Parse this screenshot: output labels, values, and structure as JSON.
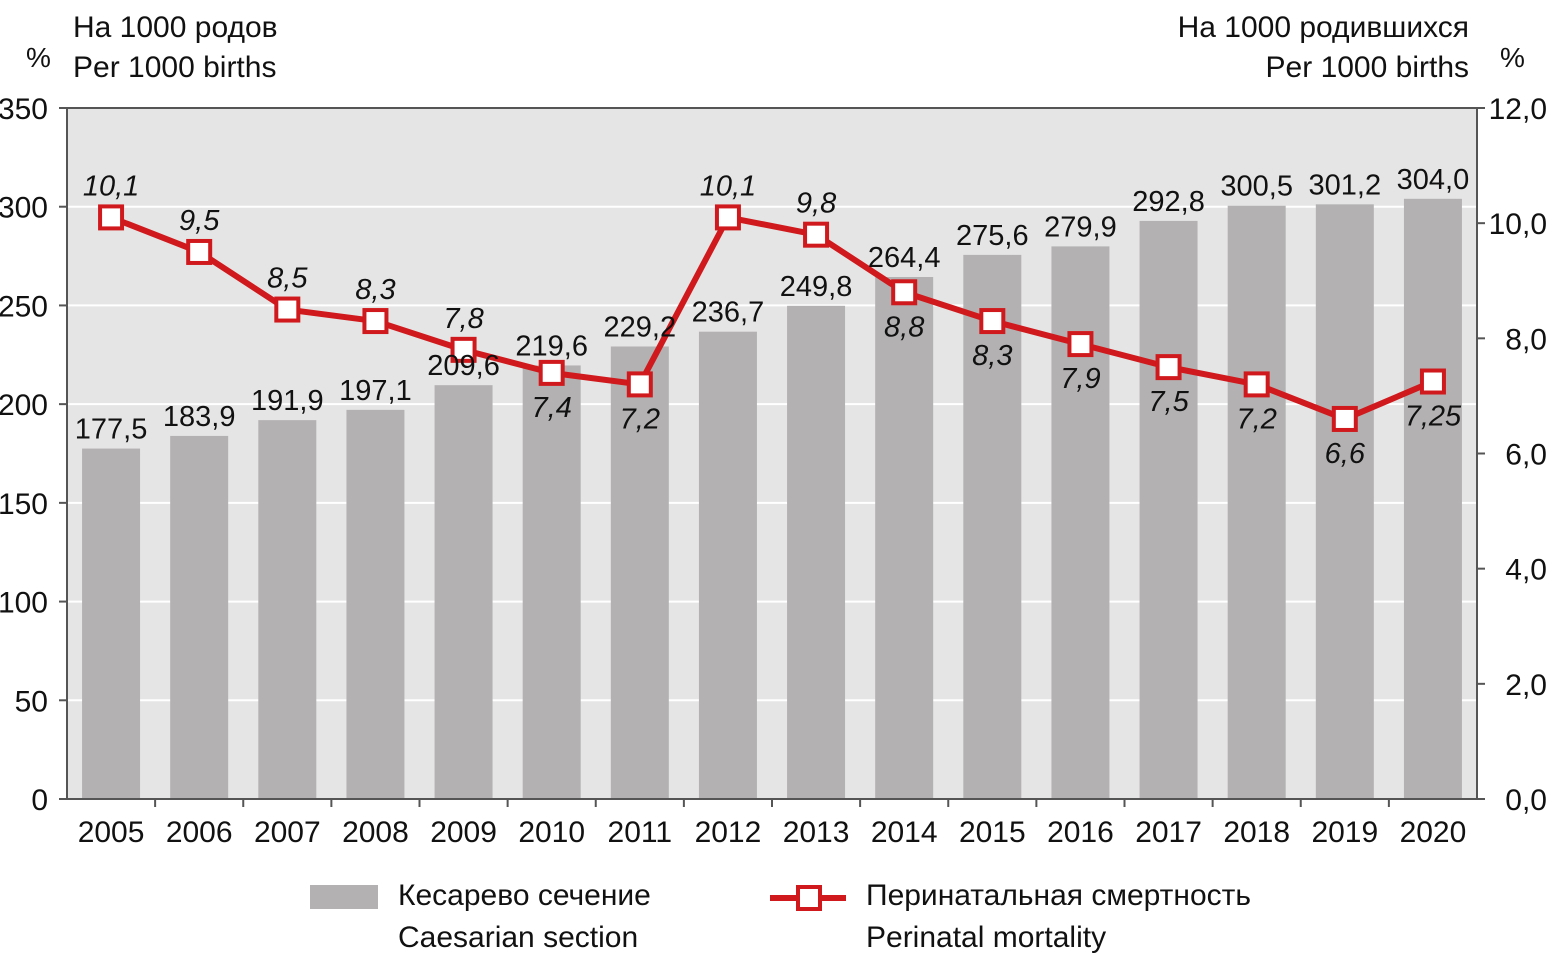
{
  "header": {
    "left_unit": "%",
    "left_line1": "На 1000 родов",
    "left_line2": "Per 1000 births",
    "right_unit": "%",
    "right_line1": "На 1000 родившихся",
    "right_line2": "Per 1000 births"
  },
  "legend": {
    "bar_ru": "Кесарево сечение",
    "bar_en": "Caesarian section",
    "line_ru": "Перинатальная смертность",
    "line_en": "Perinatal mortality"
  },
  "chart_data": {
    "type": "bar",
    "categories": [
      "2005",
      "2006",
      "2007",
      "2008",
      "2009",
      "2010",
      "2011",
      "2012",
      "2013",
      "2014",
      "2015",
      "2016",
      "2017",
      "2018",
      "2019",
      "2020"
    ],
    "series": [
      {
        "name": "Кесарево сечение / Caesarian section",
        "type": "bar",
        "axis": "left",
        "color": "#b3b1b1",
        "values": [
          177.5,
          183.9,
          191.9,
          197.1,
          209.6,
          219.6,
          229.2,
          236.7,
          249.8,
          264.4,
          275.6,
          279.9,
          292.8,
          300.5,
          301.2,
          304.0
        ],
        "labels": [
          "177,5",
          "183,9",
          "191,9",
          "197,1",
          "209,6",
          "219,6",
          "229,2",
          "236,7",
          "249,8",
          "264,4",
          "275,6",
          "279,9",
          "292,8",
          "300,5",
          "301,2",
          "304,0"
        ]
      },
      {
        "name": "Перинатальная смертность / Perinatal mortality",
        "type": "line",
        "axis": "right",
        "color": "#d0191c",
        "values": [
          10.1,
          9.5,
          8.5,
          8.3,
          7.8,
          7.4,
          7.2,
          10.1,
          9.8,
          8.8,
          8.3,
          7.9,
          7.5,
          7.2,
          6.6,
          7.25
        ],
        "labels": [
          "10,1",
          "9,5",
          "8,5",
          "8,3",
          "7,8",
          "7,4",
          "7,2",
          "10,1",
          "9,8",
          "8,8",
          "8,3",
          "7,9",
          "7,5",
          "7,2",
          "6,6",
          "7,25"
        ],
        "label_position": [
          "above",
          "above",
          "above",
          "above",
          "above",
          "below",
          "below",
          "above",
          "above",
          "below",
          "below",
          "below",
          "below",
          "below",
          "below",
          "below"
        ]
      }
    ],
    "left_axis": {
      "ylim": [
        0,
        350
      ],
      "ticks": [
        0,
        50,
        100,
        150,
        200,
        250,
        300,
        350
      ],
      "tick_labels": [
        "0",
        "50",
        "100",
        "150",
        "200",
        "250",
        "300",
        "350"
      ]
    },
    "right_axis": {
      "ylim": [
        0,
        12
      ],
      "ticks": [
        0,
        2,
        4,
        6,
        8,
        10,
        12
      ],
      "tick_labels": [
        "0,0",
        "2,0",
        "4,0",
        "6,0",
        "8,0",
        "10,0",
        "12,0"
      ]
    },
    "grid": true,
    "background": "#e6e5e5",
    "legend_position": "bottom"
  }
}
